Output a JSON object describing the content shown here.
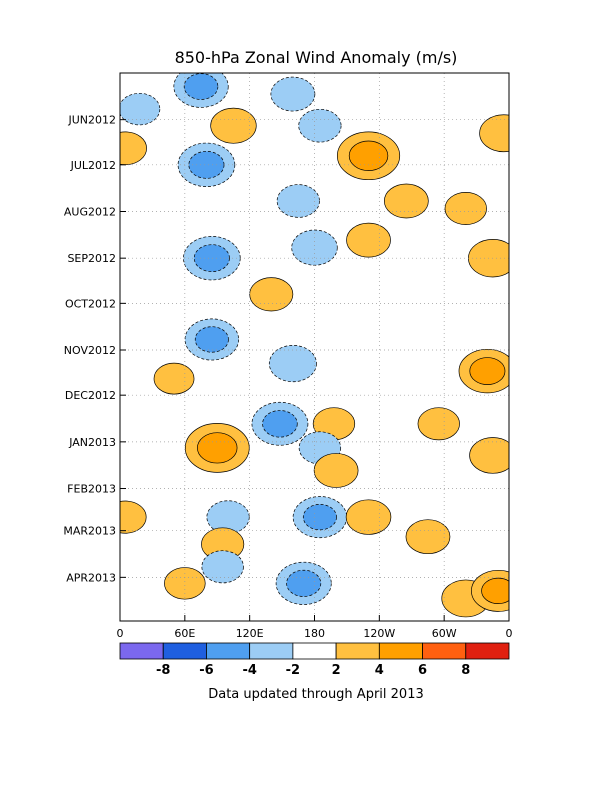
{
  "chart_data": {
    "type": "heatmap",
    "title": "850-hPa Zonal Wind Anomaly (m/s)",
    "footer": "Data updated through April 2013",
    "x_ticks": [
      "0",
      "60E",
      "120E",
      "180",
      "120W",
      "60W",
      "0"
    ],
    "x_values": [
      0,
      60,
      120,
      180,
      240,
      300,
      360
    ],
    "xlim": [
      0,
      360
    ],
    "y_ticks": [
      "JUN2012",
      "JUL2012",
      "AUG2012",
      "SEP2012",
      "OCT2012",
      "NOV2012",
      "DEC2012",
      "JAN2013",
      "FEB2013",
      "MAR2013",
      "APR2013"
    ],
    "ylim": [
      "2012-05-01",
      "2013-04-30"
    ],
    "grid": true,
    "contour_label": "0",
    "colorbar": {
      "levels": [
        -8,
        -6,
        -4,
        -2,
        2,
        4,
        6,
        8
      ],
      "tick_labels": [
        "-8",
        "-6",
        "-4",
        "-2",
        "2",
        "4",
        "6",
        "8"
      ],
      "colors": [
        "#7b68ee",
        "#1f5fe0",
        "#4f9ff0",
        "#9ccdf5",
        "#ffffff",
        "#ffc040",
        "#ffa000",
        "#ff6010",
        "#e02010"
      ]
    },
    "anomalies": [
      {
        "lon": 18,
        "date": "2012-05-25",
        "value": -2.6
      },
      {
        "lon": 75,
        "date": "2012-05-10",
        "value": -4.3
      },
      {
        "lon": 160,
        "date": "2012-05-15",
        "value": -3.0
      },
      {
        "lon": 185,
        "date": "2012-06-05",
        "value": -2.8
      },
      {
        "lon": 105,
        "date": "2012-06-05",
        "value": 3.2
      },
      {
        "lon": 230,
        "date": "2012-06-25",
        "value": 5.3
      },
      {
        "lon": 355,
        "date": "2012-06-10",
        "value": 3.5
      },
      {
        "lon": 5,
        "date": "2012-06-20",
        "value": 2.8
      },
      {
        "lon": 80,
        "date": "2012-07-01",
        "value": -4.6
      },
      {
        "lon": 165,
        "date": "2012-07-25",
        "value": -2.8
      },
      {
        "lon": 265,
        "date": "2012-07-25",
        "value": 3.0
      },
      {
        "lon": 320,
        "date": "2012-07-30",
        "value": 2.7
      },
      {
        "lon": 85,
        "date": "2012-09-01",
        "value": -4.6
      },
      {
        "lon": 180,
        "date": "2012-08-25",
        "value": -3.2
      },
      {
        "lon": 230,
        "date": "2012-08-20",
        "value": 3.0
      },
      {
        "lon": 140,
        "date": "2012-09-25",
        "value": 2.9
      },
      {
        "lon": 345,
        "date": "2012-09-01",
        "value": 3.6
      },
      {
        "lon": 85,
        "date": "2012-10-25",
        "value": -4.2
      },
      {
        "lon": 160,
        "date": "2012-11-10",
        "value": -3.4
      },
      {
        "lon": 340,
        "date": "2012-11-15",
        "value": 4.6
      },
      {
        "lon": 50,
        "date": "2012-11-20",
        "value": 2.5
      },
      {
        "lon": 148,
        "date": "2012-12-20",
        "value": -4.5
      },
      {
        "lon": 295,
        "date": "2012-12-20",
        "value": 2.7
      },
      {
        "lon": 198,
        "date": "2012-12-20",
        "value": 2.7
      },
      {
        "lon": 90,
        "date": "2013-01-05",
        "value": 5.5
      },
      {
        "lon": 185,
        "date": "2013-01-05",
        "value": -2.7
      },
      {
        "lon": 200,
        "date": "2013-01-20",
        "value": 3.0
      },
      {
        "lon": 345,
        "date": "2013-01-10",
        "value": 3.3
      },
      {
        "lon": 5,
        "date": "2013-02-20",
        "value": 2.7
      },
      {
        "lon": 185,
        "date": "2013-02-20",
        "value": -4.2
      },
      {
        "lon": 100,
        "date": "2013-02-20",
        "value": -2.8
      },
      {
        "lon": 285,
        "date": "2013-03-05",
        "value": 3.0
      },
      {
        "lon": 230,
        "date": "2013-02-20",
        "value": 3.1
      },
      {
        "lon": 170,
        "date": "2013-04-05",
        "value": -4.4
      },
      {
        "lon": 320,
        "date": "2013-04-15",
        "value": 3.5
      },
      {
        "lon": 350,
        "date": "2013-04-10",
        "value": 4.2
      },
      {
        "lon": 95,
        "date": "2013-03-10",
        "value": 2.8
      },
      {
        "lon": 60,
        "date": "2013-04-05",
        "value": 2.6
      },
      {
        "lon": 95,
        "date": "2013-03-25",
        "value": -2.7
      }
    ]
  }
}
